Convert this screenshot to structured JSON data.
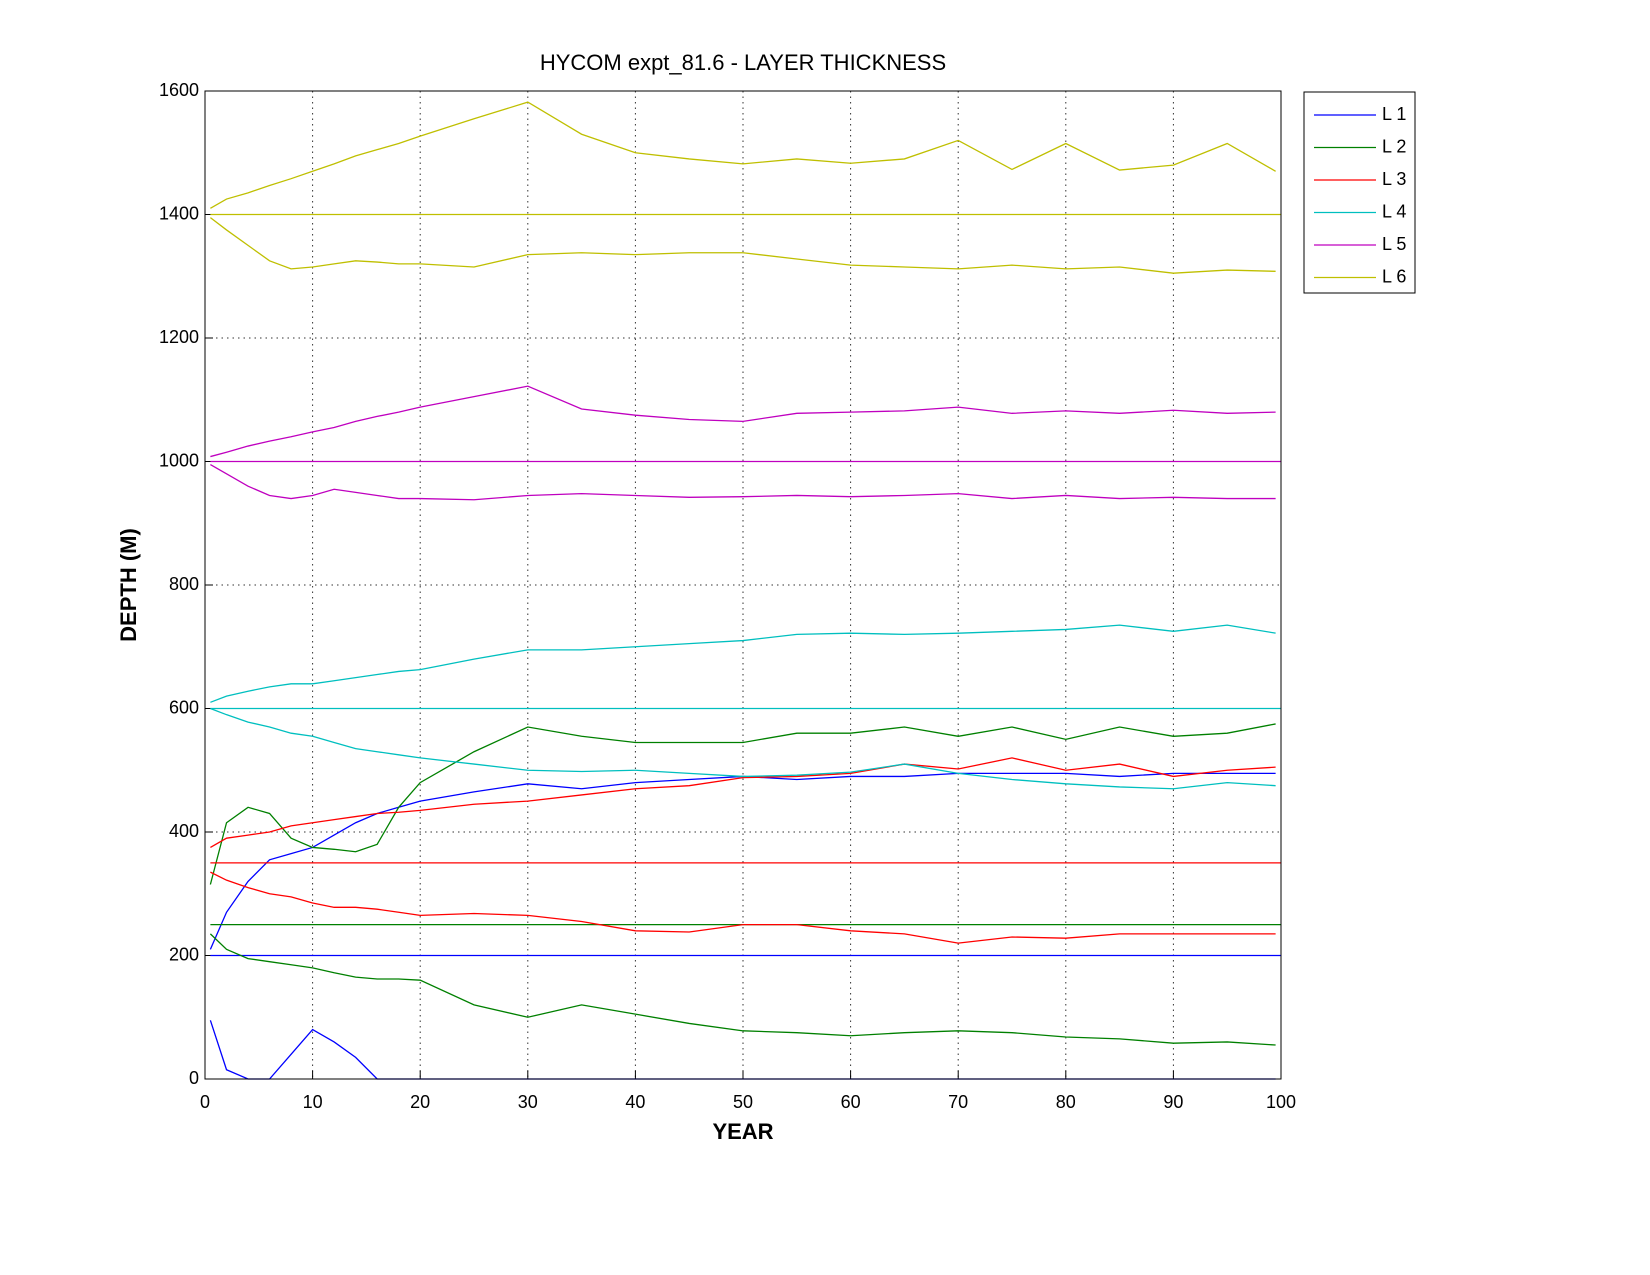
{
  "chart_data": {
    "type": "line",
    "title": "HYCOM expt_81.6 - LAYER THICKNESS",
    "xlabel": "YEAR",
    "ylabel": "DEPTH (M)",
    "x": [
      0.5,
      2,
      4,
      6,
      8,
      10,
      12,
      14,
      16,
      18,
      20,
      25,
      30,
      35,
      40,
      45,
      50,
      55,
      60,
      65,
      70,
      75,
      80,
      85,
      90,
      95,
      99.5
    ],
    "xlim": [
      0,
      100
    ],
    "xticks": [
      0,
      10,
      20,
      30,
      40,
      50,
      60,
      70,
      80,
      90,
      100
    ],
    "ylim": [
      0,
      1600
    ],
    "yticks": [
      0,
      200,
      400,
      600,
      800,
      1000,
      1200,
      1400,
      1600
    ],
    "grid": true,
    "legend": "outside-top-right",
    "series": [
      {
        "name": "L 1",
        "color": "#0000ff",
        "mean": 200,
        "upper": [
          210,
          270,
          320,
          355,
          365,
          375,
          395,
          415,
          430,
          440,
          450,
          465,
          478,
          470,
          480,
          485,
          490,
          485,
          490,
          490,
          495,
          495,
          495,
          490,
          495,
          495,
          495
        ],
        "lower": [
          95,
          15,
          0,
          0,
          40,
          80,
          60,
          35,
          0,
          0,
          0,
          0,
          0,
          0,
          0,
          0,
          0,
          0,
          0,
          0,
          0,
          0,
          0,
          0,
          0,
          0,
          0
        ]
      },
      {
        "name": "L 2",
        "color": "#008000",
        "mean": 250,
        "upper": [
          315,
          415,
          440,
          430,
          390,
          375,
          372,
          368,
          380,
          440,
          480,
          530,
          570,
          555,
          545,
          545,
          545,
          560,
          560,
          570,
          555,
          570,
          550,
          570,
          555,
          560,
          575
        ],
        "lower": [
          235,
          210,
          195,
          190,
          185,
          180,
          172,
          165,
          162,
          162,
          160,
          120,
          100,
          120,
          105,
          90,
          78,
          75,
          70,
          75,
          78,
          75,
          68,
          65,
          58,
          60,
          55
        ]
      },
      {
        "name": "L 3",
        "color": "#ff0000",
        "mean": 350,
        "upper": [
          375,
          390,
          395,
          400,
          410,
          415,
          420,
          425,
          430,
          432,
          435,
          445,
          450,
          460,
          470,
          475,
          488,
          490,
          495,
          510,
          502,
          520,
          500,
          510,
          490,
          500,
          505
        ],
        "lower": [
          335,
          322,
          310,
          300,
          295,
          285,
          278,
          278,
          275,
          270,
          265,
          268,
          265,
          255,
          240,
          238,
          250,
          250,
          240,
          235,
          220,
          230,
          228,
          235,
          235,
          235,
          235
        ]
      },
      {
        "name": "L 4",
        "color": "#00bfbf",
        "mean": 600,
        "upper": [
          610,
          620,
          628,
          635,
          640,
          640,
          645,
          650,
          655,
          660,
          663,
          680,
          695,
          695,
          700,
          705,
          710,
          720,
          722,
          720,
          722,
          725,
          728,
          735,
          725,
          735,
          722
        ],
        "lower": [
          600,
          590,
          578,
          570,
          560,
          555,
          545,
          535,
          530,
          525,
          520,
          510,
          500,
          498,
          500,
          495,
          490,
          492,
          497,
          510,
          495,
          485,
          478,
          473,
          470,
          480,
          475
        ]
      },
      {
        "name": "L 5",
        "color": "#bf00bf",
        "mean": 1000,
        "upper": [
          1008,
          1015,
          1025,
          1033,
          1040,
          1048,
          1055,
          1065,
          1073,
          1080,
          1088,
          1105,
          1122,
          1085,
          1075,
          1068,
          1065,
          1078,
          1080,
          1082,
          1088,
          1078,
          1082,
          1078,
          1083,
          1078,
          1080
        ],
        "lower": [
          995,
          980,
          960,
          945,
          940,
          945,
          955,
          950,
          945,
          940,
          940,
          938,
          945,
          948,
          945,
          942,
          943,
          945,
          943,
          945,
          948,
          940,
          945,
          940,
          942,
          940,
          940
        ]
      },
      {
        "name": "L 6",
        "color": "#bfbf00",
        "mean": 1400,
        "upper": [
          1410,
          1425,
          1435,
          1447,
          1458,
          1470,
          1482,
          1495,
          1505,
          1515,
          1527,
          1555,
          1582,
          1530,
          1500,
          1490,
          1482,
          1490,
          1483,
          1490,
          1520,
          1473,
          1515,
          1472,
          1480,
          1515,
          1470
        ],
        "lower": [
          1395,
          1375,
          1350,
          1325,
          1312,
          1315,
          1320,
          1325,
          1323,
          1320,
          1320,
          1315,
          1335,
          1338,
          1335,
          1338,
          1338,
          1328,
          1318,
          1315,
          1312,
          1318,
          1312,
          1315,
          1305,
          1310,
          1308
        ]
      }
    ]
  }
}
